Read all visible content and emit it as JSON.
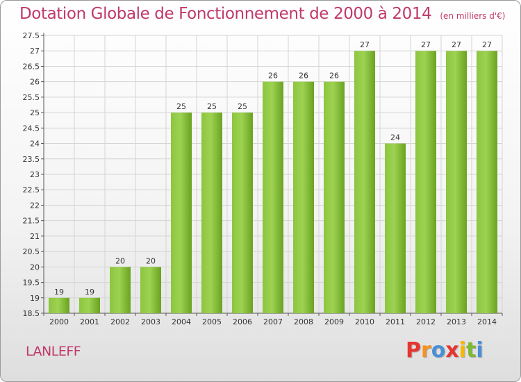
{
  "title": "Dotation Globale de Fonctionnement de 2000 à 2014",
  "subtitle": "(en milliers d'€)",
  "commune": "LANLEFF",
  "logo": {
    "letters": [
      "P",
      "r",
      "o",
      "x",
      "i",
      "t",
      "i"
    ],
    "colors": [
      "#e8342f",
      "#f39221",
      "#4a8fd4",
      "#e8342f",
      "#f5b800",
      "#7cb832",
      "#4a8fd4"
    ]
  },
  "colors": {
    "bar": "#7bbb2a",
    "bar_light": "#a3d65a",
    "title": "#c0396b"
  },
  "chart_data": {
    "type": "bar",
    "title": "Dotation Globale de Fonctionnement de 2000 à 2014",
    "subtitle": "(en milliers d'€)",
    "categories": [
      "2000",
      "2001",
      "2002",
      "2003",
      "2004",
      "2005",
      "2006",
      "2007",
      "2008",
      "2009",
      "2010",
      "2011",
      "2012",
      "2013",
      "2014"
    ],
    "values": [
      19,
      19,
      20,
      20,
      25,
      25,
      25,
      26,
      26,
      26,
      27,
      24,
      27,
      27,
      27
    ],
    "ylim": [
      18.5,
      27.5
    ],
    "yticks": [
      "18.5",
      "19",
      "19.5",
      "20",
      "20.5",
      "21",
      "21.5",
      "22",
      "22.5",
      "23",
      "23.5",
      "24",
      "24.5",
      "25",
      "25.5",
      "26",
      "26.5",
      "27",
      "27.5"
    ],
    "xlabel": "",
    "ylabel": "",
    "grid": true
  }
}
